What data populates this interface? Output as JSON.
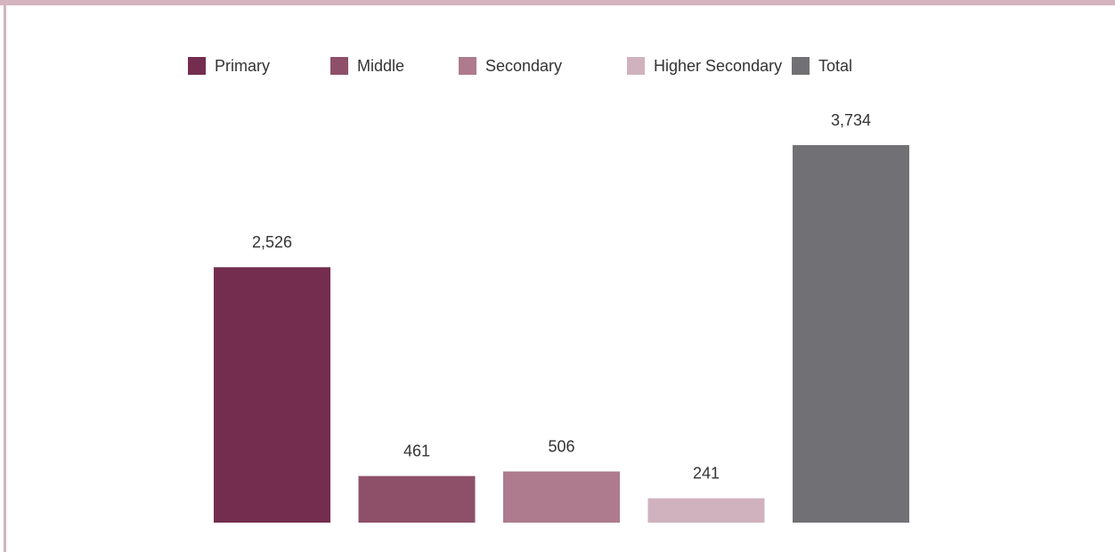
{
  "chart_data": {
    "type": "bar",
    "categories": [
      "Primary",
      "Middle",
      "Secondary",
      "Higher Secondary",
      "Total"
    ],
    "values": [
      2526,
      461,
      506,
      241,
      3734
    ],
    "value_labels": [
      "2,526",
      "461",
      "506",
      "241",
      "3,734"
    ],
    "colors": [
      "#742d4e",
      "#8e5068",
      "#ad7b8d",
      "#d0b2be",
      "#717175"
    ],
    "legend": {
      "position": "top",
      "entries": [
        "Primary",
        "Middle",
        "Secondary",
        "Higher Secondary",
        "Total"
      ]
    },
    "ylim": [
      0,
      3734
    ],
    "grid": false,
    "frame_color": "#d3b4bf"
  }
}
